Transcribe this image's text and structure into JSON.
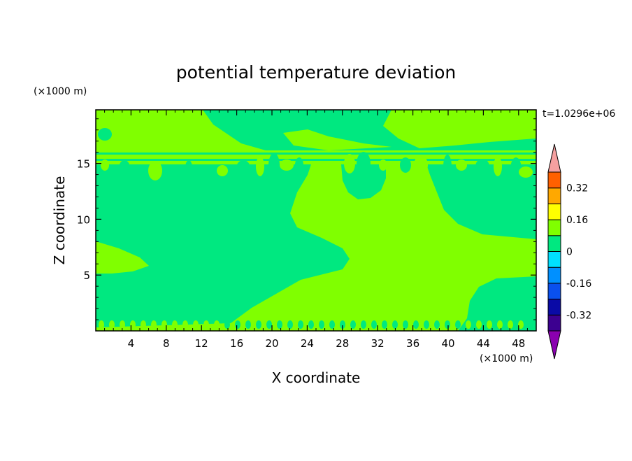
{
  "chart_data": {
    "type": "heatmap",
    "title": "potential temperature deviation",
    "xlabel": "X coordinate",
    "ylabel": "Z coordinate",
    "x_unit": "(×1000 m)",
    "y_unit": "(×1000 m)",
    "time_label": "t=1.0296e+06",
    "xlim": [
      0,
      50
    ],
    "ylim": [
      0,
      19.8
    ],
    "x_ticks": [
      4,
      8,
      12,
      16,
      20,
      24,
      28,
      32,
      36,
      40,
      44,
      48
    ],
    "y_ticks": [
      5,
      10,
      15
    ],
    "colorbar": {
      "levels": [
        -0.4,
        -0.32,
        -0.24,
        -0.16,
        -0.08,
        0,
        0.08,
        0.16,
        0.24,
        0.32,
        0.4
      ],
      "labels": [
        "0.32",
        "0.16",
        "0",
        "-0.16",
        "-0.32"
      ],
      "label_values": [
        0.32,
        0.16,
        0,
        -0.16,
        -0.32
      ],
      "colors": [
        "#8a00b0",
        "#3c0090",
        "#0a0aa6",
        "#0a50ee",
        "#0090ff",
        "#00e0ff",
        "#00e880",
        "#80ff00",
        "#ffff00",
        "#ffa800",
        "#ff6000",
        "#ff2020",
        "#f5a0a0"
      ]
    },
    "field_colors": {
      "negative": "#00e880",
      "positive": "#80ff00"
    }
  }
}
